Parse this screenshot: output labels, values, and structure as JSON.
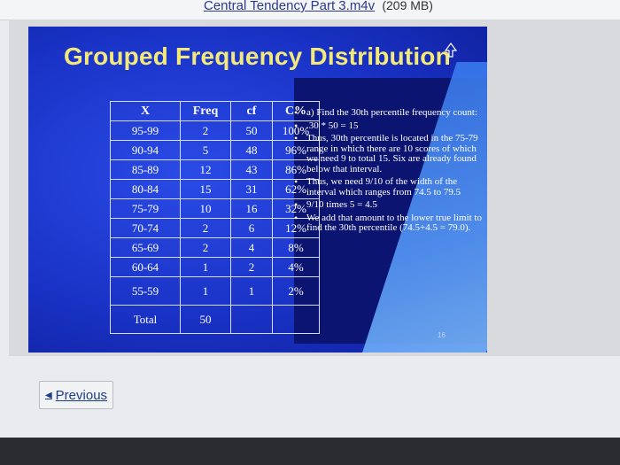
{
  "file": {
    "title": "Central Tendency Part 3.m4v",
    "size": "(209 MB)"
  },
  "slide": {
    "title": "Grouped Frequency Distribution",
    "page_number": "16",
    "table": {
      "headers": [
        "X",
        "Freq",
        "cf",
        "C%"
      ],
      "rows": [
        [
          "95-99",
          "2",
          "50",
          "100%"
        ],
        [
          "90-94",
          "5",
          "48",
          "96%"
        ],
        [
          "85-89",
          "12",
          "43",
          "86%"
        ],
        [
          "80-84",
          "15",
          "31",
          "62%"
        ],
        [
          "75-79",
          "10",
          "16",
          "32%"
        ],
        [
          "70-74",
          "2",
          "6",
          "12%"
        ],
        [
          "65-69",
          "2",
          "4",
          "8%"
        ],
        [
          "60-64",
          "1",
          "2",
          "4%"
        ],
        [
          "55-59",
          "1",
          "1",
          "2%"
        ],
        [
          "Total",
          "50",
          "",
          ""
        ]
      ]
    },
    "bullets": [
      "a) Find the 30th percentile frequency count:",
      ".30 * 50 = 15",
      "Thus, 30th percentile is located in the 75-79 range in which there are 10 scores of which we need 9 to total 15. Six are already found below that interval.",
      "Thus, we need 9/10 of the width of the interval which ranges from 74.5 to 79.5",
      "9/10 times 5 = 4.5",
      "We add that amount to the lower true limit to find the 30th percentile (74.5+4.5 = 79.0)."
    ]
  },
  "nav": {
    "previous_label": "Previous"
  }
}
